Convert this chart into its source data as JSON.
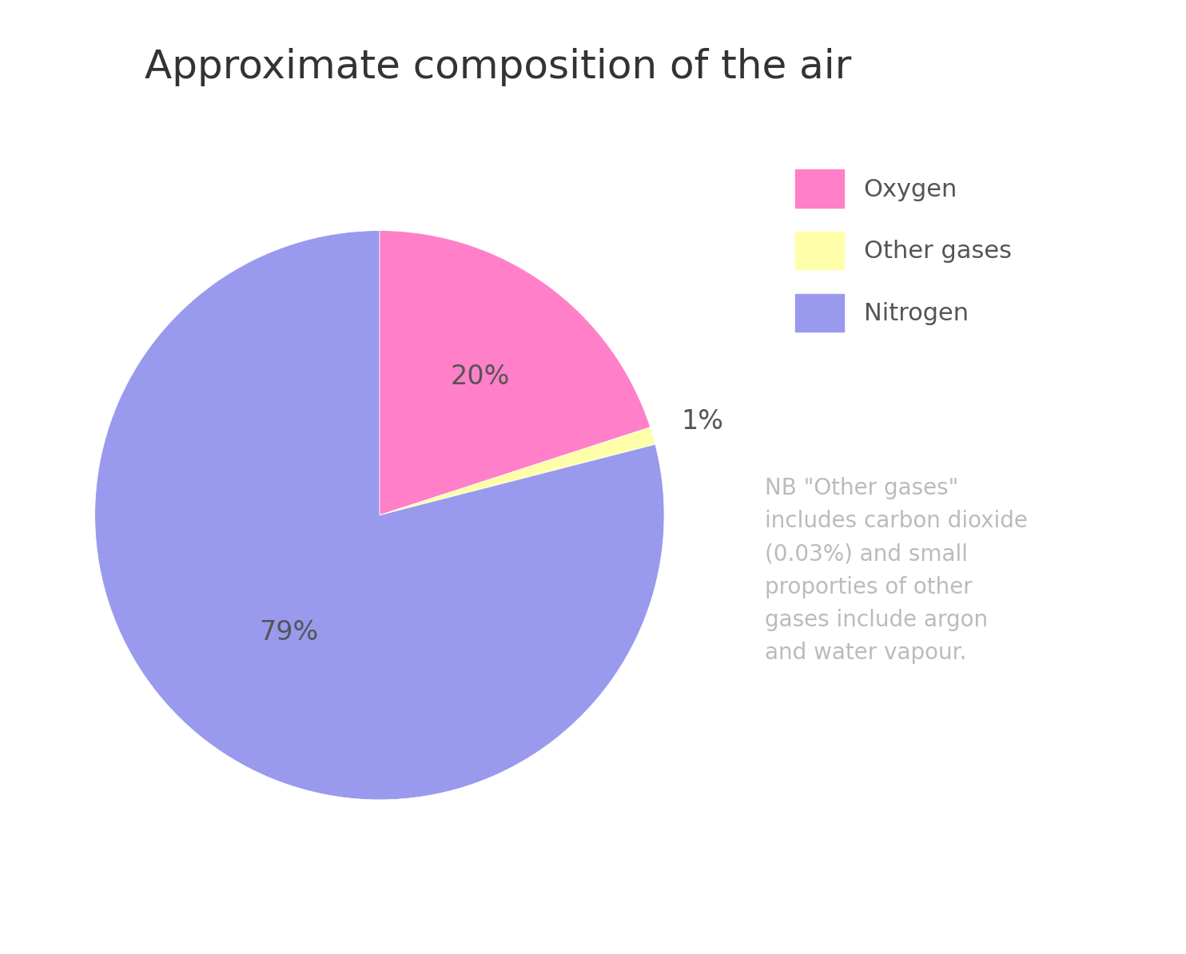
{
  "title": "Approximate composition of the air",
  "slices": [
    {
      "label": "Oxygen",
      "value": 20,
      "color": "#FF80C8",
      "pct_label": "20%"
    },
    {
      "label": "Other gases",
      "value": 1,
      "color": "#FFFFAA",
      "pct_label": "1%"
    },
    {
      "label": "Nitrogen",
      "value": 79,
      "color": "#9999EE",
      "pct_label": "79%"
    }
  ],
  "legend_labels": [
    "Oxygen",
    "Other gases",
    "Nitrogen"
  ],
  "legend_colors": [
    "#FF80C8",
    "#FFFFAA",
    "#9999EE"
  ],
  "annotation_text": "NB \"Other gases\"\nincludes carbon dioxide\n(0.03%) and small\nproporties of other\ngases include argon\nand water vapour.",
  "annotation_color": "#BBBBBB",
  "title_color": "#333333",
  "label_color": "#555555",
  "background_color": "#FFFFFF",
  "title_fontsize": 36,
  "legend_fontsize": 22,
  "annotation_fontsize": 20,
  "pct_fontsize": 24
}
